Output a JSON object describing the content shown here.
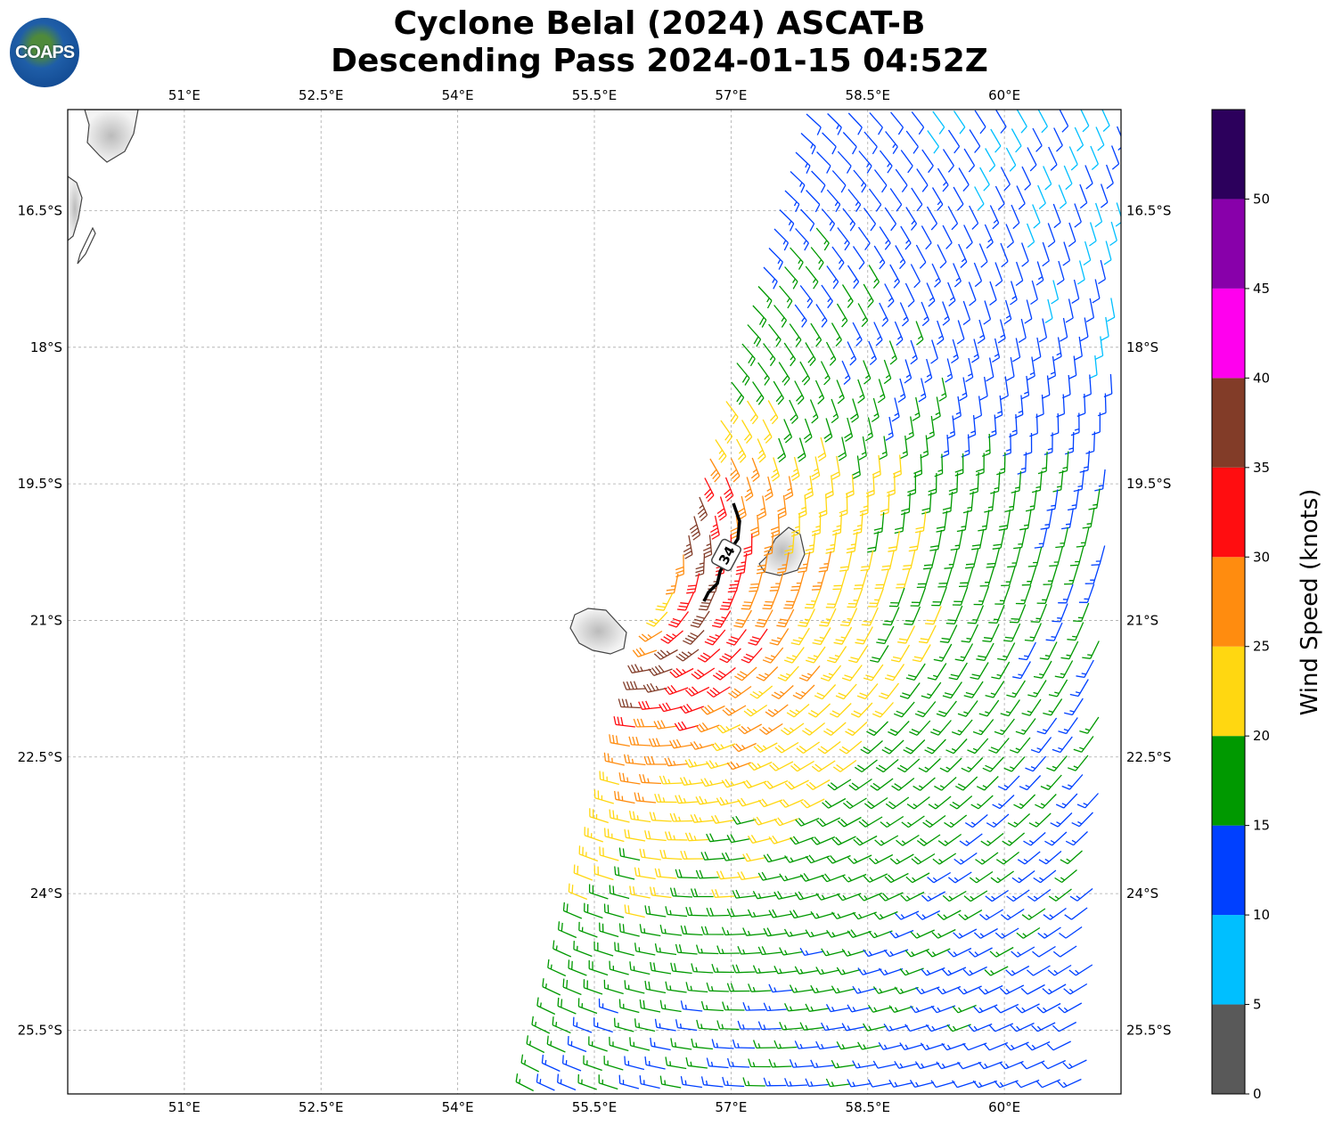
{
  "title": {
    "line1": "Cyclone Belal (2024) ASCAT-B",
    "line2": "Descending Pass 2024-01-15 04:52Z"
  },
  "logo": {
    "text": "COAPS"
  },
  "map": {
    "lon_ticks": [
      {
        "value": 51,
        "label": "51°E"
      },
      {
        "value": 52.5,
        "label": "52.5°E"
      },
      {
        "value": 54,
        "label": "54°E"
      },
      {
        "value": 55.5,
        "label": "55.5°E"
      },
      {
        "value": 57,
        "label": "57°E"
      },
      {
        "value": 58.5,
        "label": "58.5°E"
      },
      {
        "value": 60,
        "label": "60°E"
      }
    ],
    "lat_ticks": [
      {
        "value": -16.5,
        "label": "16.5°S"
      },
      {
        "value": -18,
        "label": "18°S"
      },
      {
        "value": -19.5,
        "label": "19.5°S"
      },
      {
        "value": -21,
        "label": "21°S"
      },
      {
        "value": -22.5,
        "label": "22.5°S"
      },
      {
        "value": -24,
        "label": "24°S"
      },
      {
        "value": -25.5,
        "label": "25.5°S"
      }
    ],
    "extent": {
      "lon_min": 49.72,
      "lon_max": 61.28,
      "lat_min": -26.2,
      "lat_max": -15.39
    },
    "contour_label": "34",
    "wind_field": {
      "center_lon": 55.6,
      "center_lat": -20.6,
      "vmax_kt": 38,
      "rmax_deg": 1.2
    }
  },
  "colorbar": {
    "label": "Wind Speed (knots)",
    "bounds": [
      0,
      5,
      10,
      15,
      20,
      25,
      30,
      35,
      40,
      45,
      50,
      55
    ],
    "tick_labels": [
      "0",
      "5",
      "10",
      "15",
      "20",
      "25",
      "30",
      "35",
      "40",
      "45",
      "50"
    ],
    "colors": [
      "#595959",
      "#00bfff",
      "#0040ff",
      "#009900",
      "#ffd711",
      "#ff8c0f",
      "#ff0d10",
      "#823c28",
      "#ff00ee",
      "#8800aa",
      "#2c005c"
    ]
  }
}
